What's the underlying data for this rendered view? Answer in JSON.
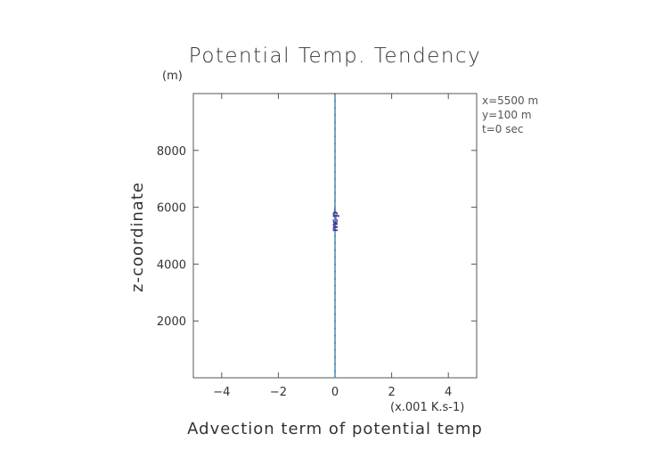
{
  "chart_data": {
    "type": "line",
    "title": "Potential Temp. Tendency",
    "xlabel": "Advection term of potential temp",
    "x_unit": "(x.001 K.s-1)",
    "ylabel": "z-coordinate",
    "y_unit": "(m)",
    "xlim": [
      -5,
      5
    ],
    "ylim": [
      0,
      10000
    ],
    "x_ticks": [
      -4,
      -2,
      0,
      2,
      4
    ],
    "y_ticks": [
      2000,
      4000,
      6000,
      8000
    ],
    "x_tick_labels": [
      "−4",
      "−2",
      "0",
      "2",
      "4"
    ],
    "y_tick_labels": [
      "2000",
      "4000",
      "6000",
      "8000"
    ],
    "grid": false,
    "annotations": [
      "x=5500 m",
      "y=100 m",
      "t=0 sec"
    ],
    "series": [
      {
        "color": "#2a2a8a",
        "style": "solid",
        "x": [
          0,
          0,
          0.005,
          -0.005,
          0,
          0
        ],
        "y": [
          0,
          5000,
          5400,
          5800,
          6200,
          10000
        ]
      },
      {
        "color": "#c03a9a",
        "style": "dashed",
        "x": [
          0,
          0,
          -0.02,
          0.04,
          -0.02,
          0,
          0
        ],
        "y": [
          0,
          5100,
          5350,
          5600,
          5850,
          6100,
          10000
        ]
      },
      {
        "color": "#3fae3f",
        "style": "dotted",
        "x": [
          0,
          0,
          0.02,
          -0.03,
          0.02,
          0,
          0
        ],
        "y": [
          0,
          5150,
          5400,
          5650,
          5900,
          6100,
          10000
        ]
      },
      {
        "color": "#2fa6c8",
        "style": "dashed",
        "x": [
          0,
          0,
          0.03,
          -0.01,
          0.01,
          0,
          0
        ],
        "y": [
          0,
          5100,
          5350,
          5600,
          5900,
          6150,
          10000
        ]
      }
    ],
    "markers": {
      "color": "#3a3a9a",
      "labels": [
        "m",
        "c",
        "p"
      ],
      "y": [
        5300,
        5500,
        5750
      ],
      "x": [
        0,
        0,
        0
      ]
    }
  }
}
